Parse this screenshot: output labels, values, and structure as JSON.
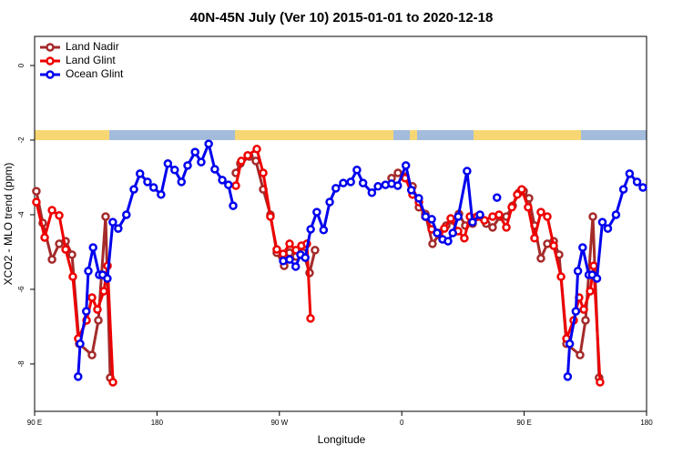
{
  "chart_data": {
    "type": "line",
    "title": "40N-45N July (Ver 10)   2015-01-01 to 2020-12-18",
    "x_label": "Longitude",
    "y_label": "XCO2 - MLO trend (ppm)",
    "xlim": [
      90,
      540
    ],
    "ylim": [
      -9.27,
      0.78
    ],
    "xticks": [
      {
        "value": 90,
        "label": "90 E"
      },
      {
        "value": 180,
        "label": "180"
      },
      {
        "value": 270,
        "label": "90 W"
      },
      {
        "value": 360,
        "label": "0"
      },
      {
        "value": 450,
        "label": "90 E"
      },
      {
        "value": 540,
        "label": "180"
      }
    ],
    "yticks": [
      0,
      -2,
      -4,
      -6,
      -8
    ],
    "legend": "top-left",
    "series": [
      {
        "name": "Land Nadir",
        "color": "#a52a2a",
        "x": [
          91.3,
          96,
          102.8,
          108.1,
          112.8,
          117.5,
          122.8,
          132.2,
          136.9,
          142.2,
          145.6,
          null,
          238,
          241.3,
          248,
          252.7,
          258.1,
          263.4,
          268.1,
          273.5,
          277.5,
          282.2,
          287.5,
          292.2,
          296.2,
          null,
          352.5,
          357.2,
          362.5,
          367.9,
          372.6,
          377.3,
          382.6,
          387.3,
          392.7,
          397.4,
          402,
          406.7,
          412.1,
          417.4,
          422.1,
          426.8,
          432.2,
          436.9,
          441.5,
          446.2,
          449.6,
          453.6,
          457.6,
          462.3,
          467,
          471.7,
          475.7,
          481.1,
          491.1,
          495.1,
          500.5,
          505.1
        ],
        "values": [
          -3.37,
          -4.22,
          -5.2,
          -4.78,
          -4.71,
          -5.07,
          -7.46,
          -7.76,
          -6.83,
          -4.05,
          -8.37,
          null,
          -2.88,
          -2.63,
          -2.44,
          -2.56,
          -3.32,
          -4.0,
          -5.02,
          -5.37,
          -5.02,
          -5.12,
          -5.02,
          -5.56,
          -4.95,
          null,
          -3.02,
          -2.88,
          -2.98,
          -3.24,
          -3.8,
          -3.98,
          -4.78,
          -4.54,
          -4.29,
          -4.15,
          -3.98,
          -4.29,
          -4.24,
          -4.05,
          -4.24,
          -4.34,
          -4.05,
          -4.05,
          -3.76,
          -3.41,
          -3.37,
          -3.56,
          -4.29,
          -5.17,
          -4.78,
          -4.71,
          -5.07,
          -7.46,
          -7.76,
          -6.83,
          -4.05,
          -8.37
        ]
      },
      {
        "name": "Land Glint",
        "color": "#ee0000",
        "x": [
          91.3,
          97.4,
          102.8,
          108.1,
          112.8,
          118.1,
          122.1,
          128.2,
          132.2,
          136.2,
          140.9,
          143.6,
          147.6,
          null,
          238,
          242,
          246.7,
          253.4,
          258.1,
          263.4,
          268.1,
          272.8,
          277.5,
          282.2,
          286.2,
          290.2,
          292.9,
          null,
          362.5,
          367.9,
          372.6,
          377.3,
          382,
          387.3,
          391.3,
          396,
          401.4,
          406,
          410.1,
          415.4,
          420.8,
          426.8,
          431.5,
          436.9,
          440.9,
          444.9,
          448.2,
          452.9,
          457.6,
          462.3,
          467,
          471.7,
          477.1,
          481.1,
          486.4,
          490.4,
          493.8,
          498.5,
          501.1,
          505.8
        ],
        "values": [
          -3.66,
          -4.61,
          -3.88,
          -4.02,
          -4.93,
          -5.66,
          -7.32,
          -6.83,
          -6.22,
          -6.54,
          -6.05,
          -5.37,
          -8.49,
          null,
          -3.22,
          -2.56,
          -2.41,
          -2.24,
          -2.88,
          -4.05,
          -4.93,
          -5.05,
          -4.78,
          -4.95,
          -4.83,
          -4.78,
          -6.78,
          null,
          -3.02,
          -3.46,
          -3.66,
          -4.05,
          -4.39,
          -4.49,
          -4.37,
          -4.1,
          -4.44,
          -4.63,
          -4.05,
          -4.05,
          -4.15,
          -4.05,
          -4.0,
          -4.34,
          -3.8,
          -3.46,
          -3.32,
          -3.8,
          -4.63,
          -3.93,
          -4.05,
          -4.83,
          -5.66,
          -7.32,
          -6.83,
          -6.22,
          -6.54,
          -6.05,
          -5.37,
          -8.49
        ]
      },
      {
        "name": "Ocean Glint",
        "color": "#0000ee",
        "x": [
          122,
          123.5,
          128,
          129.5,
          133,
          137.5,
          140,
          143.5,
          147.5,
          151.5,
          157.5,
          163,
          167.5,
          173,
          177.5,
          183,
          188,
          193,
          198,
          202.5,
          208,
          212.5,
          218,
          222.5,
          228,
          232.5,
          236,
          null,
          272.8,
          277.5,
          282,
          285.5,
          289,
          293,
          297.5,
          302.5,
          307,
          311.5,
          317,
          322.5,
          327,
          331.5,
          338,
          342.5,
          348,
          352.5,
          357,
          363,
          367,
          372.5,
          377.5,
          382,
          386,
          390,
          394,
          397.5,
          401.5,
          408,
          412,
          417.5,
          null,
          430,
          null,
          482,
          483.5,
          488,
          489.5,
          493,
          497.5,
          500,
          503.5,
          507.5,
          511.5,
          517.5,
          523,
          527.5,
          533,
          537.3
        ],
        "values": [
          -8.34,
          -7.46,
          -6.59,
          -5.51,
          -4.88,
          -5.61,
          -5.61,
          -5.71,
          -4.2,
          -4.37,
          -4.0,
          -3.32,
          -2.9,
          -3.12,
          -3.27,
          -3.46,
          -2.63,
          -2.8,
          -3.12,
          -2.68,
          -2.32,
          -2.59,
          -2.1,
          -2.78,
          -3.07,
          -3.2,
          -3.76,
          null,
          -5.24,
          -5.2,
          -5.39,
          -5.07,
          -5.15,
          -4.39,
          -3.93,
          -4.41,
          -3.66,
          -3.29,
          -3.15,
          -3.12,
          -2.8,
          -3.15,
          -3.41,
          -3.24,
          -3.2,
          -3.17,
          -3.22,
          -2.68,
          -3.34,
          -3.56,
          -4.05,
          -4.12,
          -4.49,
          -4.66,
          -4.71,
          -4.49,
          -4.05,
          -2.83,
          -4.2,
          -4.0,
          null,
          -3.54,
          null,
          -8.34,
          -7.46,
          -6.59,
          -5.51,
          -4.88,
          -5.61,
          -5.61,
          -5.71,
          -4.2,
          -4.37,
          -4.0,
          -3.32,
          -2.9,
          -3.12,
          -3.27
        ]
      }
    ]
  }
}
